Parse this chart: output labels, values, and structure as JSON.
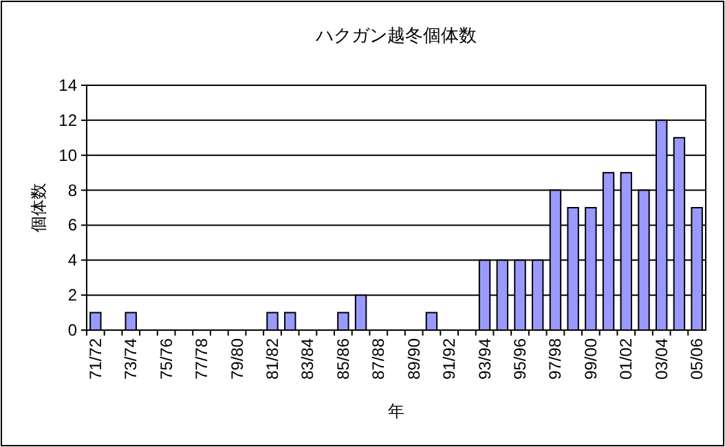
{
  "chart_data": {
    "type": "bar",
    "title": "ハクガン越冬個体数",
    "xlabel": "年",
    "ylabel": "個体数",
    "categories": [
      "71/72",
      null,
      "73/74",
      null,
      "75/76",
      null,
      "77/78",
      null,
      "79/80",
      null,
      "81/82",
      null,
      "83/84",
      null,
      "85/86",
      null,
      "87/88",
      null,
      "89/90",
      null,
      "91/92",
      null,
      "93/94",
      null,
      "95/96",
      null,
      "97/98",
      null,
      "99/00",
      null,
      "01/02",
      null,
      "03/04",
      null,
      "05/06"
    ],
    "values": [
      1,
      0,
      1,
      0,
      0,
      0,
      0,
      0,
      0,
      0,
      1,
      1,
      0,
      0,
      1,
      2,
      0,
      0,
      0,
      1,
      0,
      0,
      4,
      4,
      4,
      4,
      8,
      7,
      7,
      9,
      9,
      8,
      12,
      11,
      7
    ],
    "color": "#9999ff",
    "ylim": [
      0,
      14
    ],
    "yticks": [
      0,
      2,
      4,
      6,
      8,
      10,
      12,
      14
    ],
    "grid": "y"
  }
}
